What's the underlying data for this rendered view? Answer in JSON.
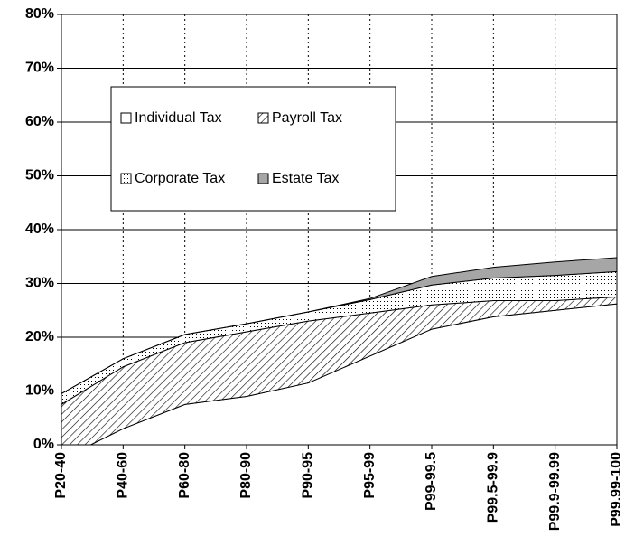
{
  "chart_data": {
    "type": "stacked_area",
    "categories": [
      "P20-40",
      "P40-60",
      "P60-80",
      "P80-90",
      "P90-95",
      "P95-99",
      "P99-99.5",
      "P99.5-99.9",
      "P99.9-99.99",
      "P99.99-100"
    ],
    "series": [
      {
        "name": "Individual Tax",
        "color": "#ffffff",
        "pattern": "solid",
        "values": [
          -2.7,
          3,
          7.5,
          9,
          11.5,
          16.5,
          21.5,
          23.8,
          25,
          26.2
        ]
      },
      {
        "name": "Payroll Tax",
        "color": "#000000",
        "pattern": "diagonal",
        "values": [
          10.2,
          11.5,
          11.5,
          12,
          11.5,
          8,
          4.5,
          3,
          1.8,
          1.3
        ]
      },
      {
        "name": "Corporate Tax",
        "color": "#000000",
        "pattern": "dotted",
        "values": [
          2,
          1.5,
          1.5,
          1.5,
          1.7,
          2.5,
          3.7,
          4.2,
          4.7,
          4.7
        ]
      },
      {
        "name": "Estate Tax",
        "color": "#a6a6a6",
        "pattern": "solid",
        "values": [
          0,
          0,
          0,
          0,
          0,
          0.2,
          1.6,
          2,
          2.5,
          2.6
        ]
      }
    ],
    "ylim": [
      0,
      80
    ],
    "yticks": [
      {
        "value": 0,
        "label": "0%"
      },
      {
        "value": 10,
        "label": "10%"
      },
      {
        "value": 20,
        "label": "20%"
      },
      {
        "value": 30,
        "label": "30%"
      },
      {
        "value": 40,
        "label": "40%"
      },
      {
        "value": 50,
        "label": "50%"
      },
      {
        "value": 60,
        "label": "60%"
      },
      {
        "value": 70,
        "label": "70%"
      },
      {
        "value": 80,
        "label": "80%"
      }
    ],
    "grid": true
  }
}
